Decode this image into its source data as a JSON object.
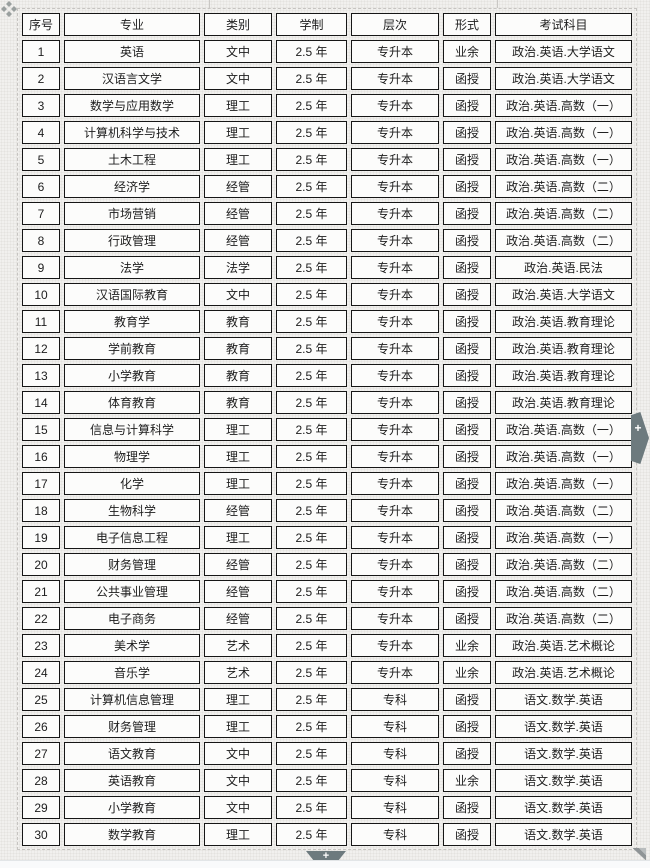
{
  "table": {
    "columns": [
      "序号",
      "专业",
      "类别",
      "学制",
      "层次",
      "形式",
      "考试科目"
    ],
    "rows": [
      [
        "1",
        "英语",
        "文中",
        "2.5 年",
        "专升本",
        "业余",
        "政治.英语.大学语文"
      ],
      [
        "2",
        "汉语言文学",
        "文中",
        "2.5 年",
        "专升本",
        "函授",
        "政治.英语.大学语文"
      ],
      [
        "3",
        "数学与应用数学",
        "理工",
        "2.5 年",
        "专升本",
        "函授",
        "政治.英语.高数（一）"
      ],
      [
        "4",
        "计算机科学与技术",
        "理工",
        "2.5 年",
        "专升本",
        "函授",
        "政治.英语.高数（一）"
      ],
      [
        "5",
        "土木工程",
        "理工",
        "2.5 年",
        "专升本",
        "函授",
        "政治.英语.高数（一）"
      ],
      [
        "6",
        "经济学",
        "经管",
        "2.5 年",
        "专升本",
        "函授",
        "政治.英语.高数（二）"
      ],
      [
        "7",
        "市场营销",
        "经管",
        "2.5 年",
        "专升本",
        "函授",
        "政治.英语.高数（二）"
      ],
      [
        "8",
        "行政管理",
        "经管",
        "2.5 年",
        "专升本",
        "函授",
        "政治.英语.高数（二）"
      ],
      [
        "9",
        "法学",
        "法学",
        "2.5 年",
        "专升本",
        "函授",
        "政治.英语.民法"
      ],
      [
        "10",
        "汉语国际教育",
        "文中",
        "2.5 年",
        "专升本",
        "函授",
        "政治.英语.大学语文"
      ],
      [
        "11",
        "教育学",
        "教育",
        "2.5 年",
        "专升本",
        "函授",
        "政治.英语.教育理论"
      ],
      [
        "12",
        "学前教育",
        "教育",
        "2.5 年",
        "专升本",
        "函授",
        "政治.英语.教育理论"
      ],
      [
        "13",
        "小学教育",
        "教育",
        "2.5 年",
        "专升本",
        "函授",
        "政治.英语.教育理论"
      ],
      [
        "14",
        "体育教育",
        "教育",
        "2.5 年",
        "专升本",
        "函授",
        "政治.英语.教育理论"
      ],
      [
        "15",
        "信息与计算科学",
        "理工",
        "2.5 年",
        "专升本",
        "函授",
        "政治.英语.高数（一）"
      ],
      [
        "16",
        "物理学",
        "理工",
        "2.5 年",
        "专升本",
        "函授",
        "政治.英语.高数（一）"
      ],
      [
        "17",
        "化学",
        "理工",
        "2.5 年",
        "专升本",
        "函授",
        "政治.英语.高数（一）"
      ],
      [
        "18",
        "生物科学",
        "经管",
        "2.5 年",
        "专升本",
        "函授",
        "政治.英语.高数（二）"
      ],
      [
        "19",
        "电子信息工程",
        "理工",
        "2.5 年",
        "专升本",
        "函授",
        "政治.英语.高数（一）"
      ],
      [
        "20",
        "财务管理",
        "经管",
        "2.5 年",
        "专升本",
        "函授",
        "政治.英语.高数（二）"
      ],
      [
        "21",
        "公共事业管理",
        "经管",
        "2.5 年",
        "专升本",
        "函授",
        "政治.英语.高数（二）"
      ],
      [
        "22",
        "电子商务",
        "经管",
        "2.5 年",
        "专升本",
        "函授",
        "政治.英语.高数（二）"
      ],
      [
        "23",
        "美术学",
        "艺术",
        "2.5 年",
        "专升本",
        "业余",
        "政治.英语.艺术概论"
      ],
      [
        "24",
        "音乐学",
        "艺术",
        "2.5 年",
        "专升本",
        "业余",
        "政治.英语.艺术概论"
      ],
      [
        "25",
        "计算机信息管理",
        "理工",
        "2.5 年",
        "专科",
        "函授",
        "语文.数学.英语"
      ],
      [
        "26",
        "财务管理",
        "理工",
        "2.5 年",
        "专科",
        "函授",
        "语文.数学.英语"
      ],
      [
        "27",
        "语文教育",
        "文中",
        "2.5 年",
        "专科",
        "函授",
        "语文.数学.英语"
      ],
      [
        "28",
        "英语教育",
        "文中",
        "2.5 年",
        "专科",
        "业余",
        "语文.数学.英语"
      ],
      [
        "29",
        "小学教育",
        "文中",
        "2.5 年",
        "专科",
        "函授",
        "语文.数学.英语"
      ],
      [
        "30",
        "数学教育",
        "理工",
        "2.5 年",
        "专科",
        "函授",
        "语文.数学.英语"
      ]
    ]
  },
  "controls": {
    "add_column_label": "+",
    "add_row_label": "+"
  },
  "colors": {
    "handle_gray": "#6d7a7e",
    "cell_border": "#161616",
    "cell_background": "#fcfcfb",
    "canvas_background": "#f1f0ee"
  }
}
